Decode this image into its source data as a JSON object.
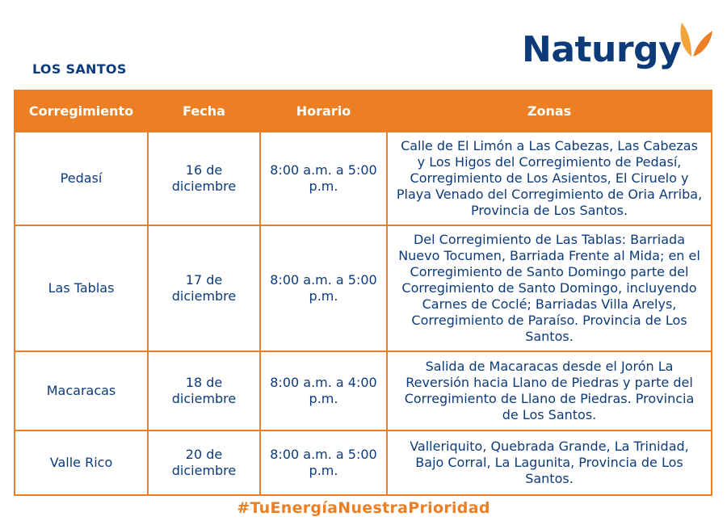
{
  "region": "LOS SANTOS",
  "brand": {
    "name": "Naturgy",
    "color": "#0d3b7a",
    "accent": "#ec7f23",
    "logo_icon": "butterfly-icon"
  },
  "table": {
    "headers": {
      "corregimiento": "Corregimiento",
      "fecha": "Fecha",
      "horario": "Horario",
      "zonas": "Zonas"
    },
    "rows": [
      {
        "corregimiento": "Pedasí",
        "fecha": "16 de diciembre",
        "horario": "8:00 a.m. a 5:00 p.m.",
        "zonas": "Calle de El Limón a Las Cabezas, Las Cabezas y Los Higos del Corregimiento de Pedasí, Corregimiento de Los Asientos, El Ciruelo y Playa Venado del Corregimiento de Oria Arriba, Provincia de Los Santos."
      },
      {
        "corregimiento": "Las Tablas",
        "fecha": "17 de diciembre",
        "horario": "8:00 a.m. a 5:00 p.m.",
        "zonas": "Del Corregimiento de Las Tablas: Barriada Nuevo Tocumen, Barriada Frente al Mida; en el Corregimiento de Santo Domingo parte del Corregimiento de Santo Domingo, incluyendo Carnes de Coclé; Barriadas Villa Arelys, Corregimiento de Paraíso. Provincia de Los Santos."
      },
      {
        "corregimiento": "Macaracas",
        "fecha": "18 de diciembre",
        "horario": "8:00 a.m. a 4:00 p.m.",
        "zonas": "Salida de Macaracas desde el Jorón La Reversión hacia Llano de Piedras y parte del Corregimiento de Llano de Piedras. Provincia de Los Santos."
      },
      {
        "corregimiento": "Valle Rico",
        "fecha": "20 de diciembre",
        "horario": "8:00 a.m. a 5:00 p.m.",
        "zonas": "Valleriquito, Quebrada Grande, La Trinidad, Bajo Corral, La Lagunita, Provincia de Los Santos."
      }
    ]
  },
  "hashtag": "#TuEnergíaNuestraPrioridad"
}
